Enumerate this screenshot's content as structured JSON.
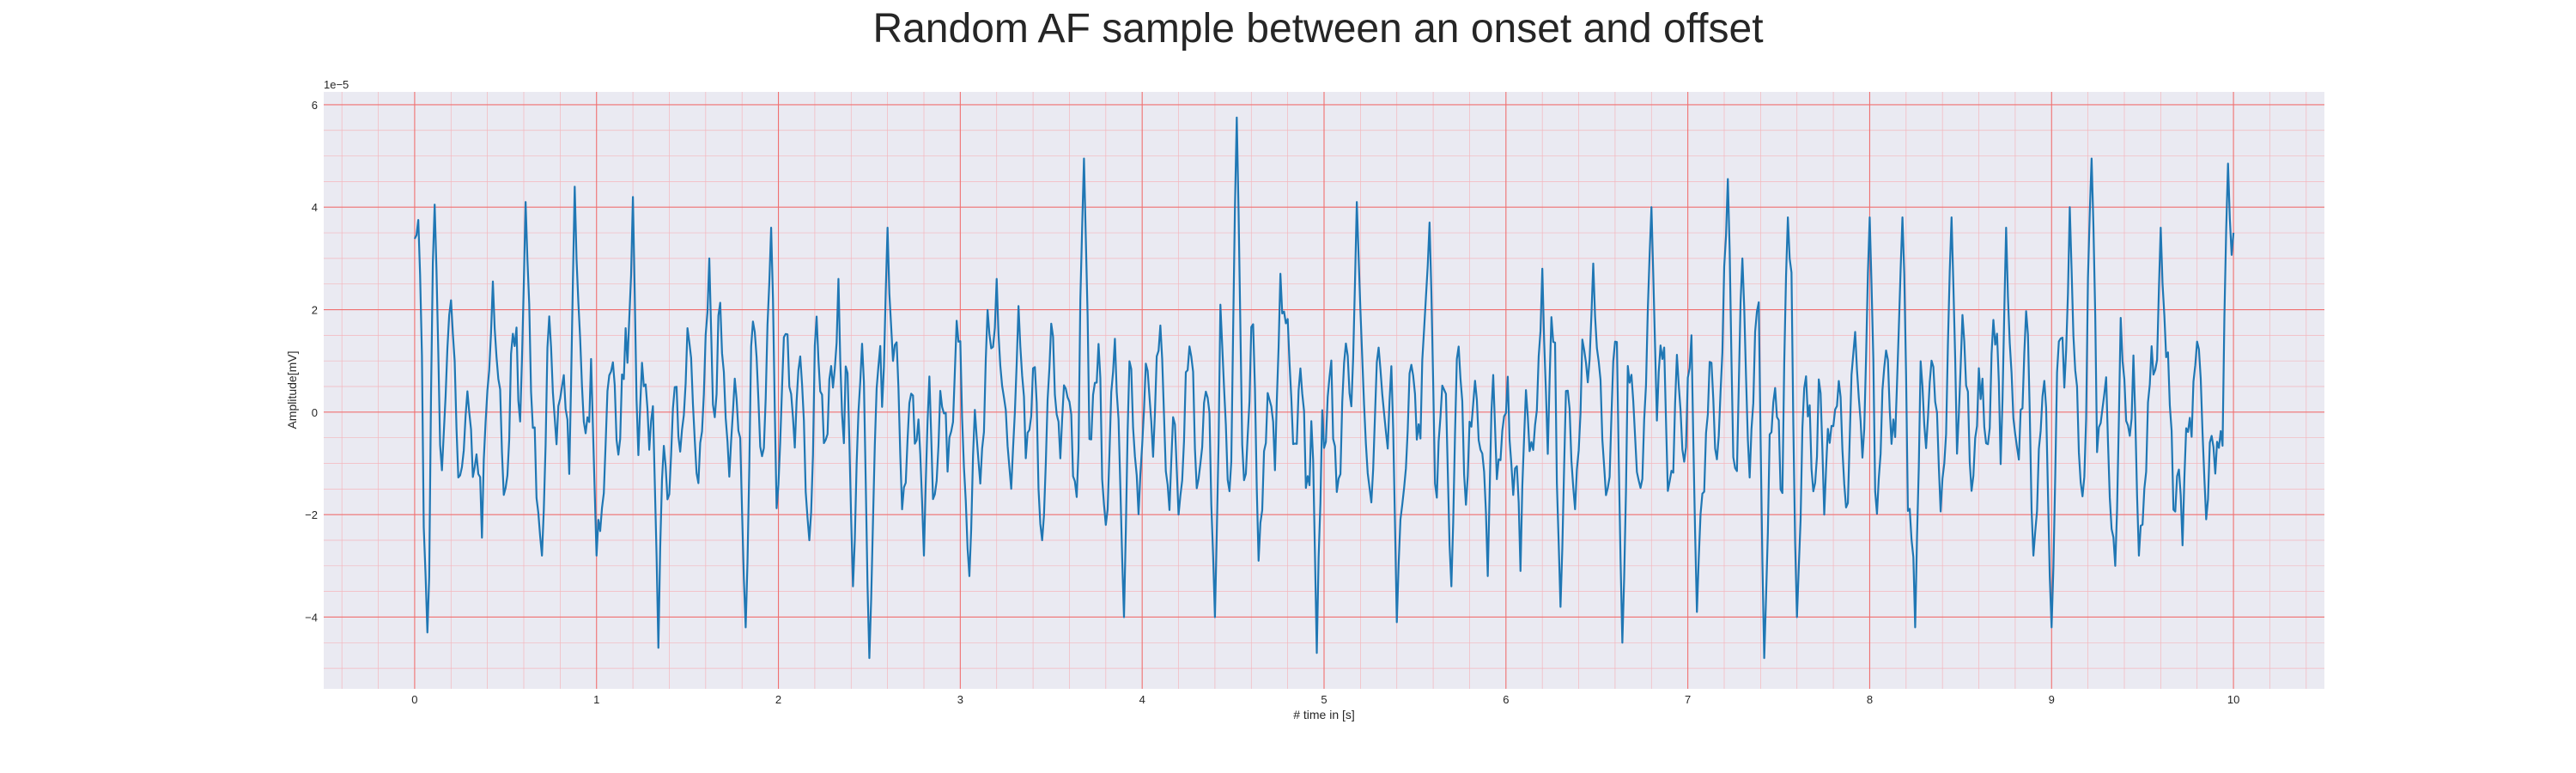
{
  "chart_data": {
    "type": "line",
    "title": "Random AF sample between an onset and offset",
    "xlabel": "# time in [s]",
    "ylabel": "Amplitude[mV]",
    "y_offset_text": "1e−5",
    "xlim": [
      -0.5,
      10.5
    ],
    "ylim": [
      -5.4,
      6.25
    ],
    "x_ticks": [
      0,
      1,
      2,
      3,
      4,
      5,
      6,
      7,
      8,
      9,
      10
    ],
    "y_ticks": [
      -4,
      -2,
      0,
      2,
      4,
      6
    ],
    "y_unit_scale": "1e-5",
    "grid": "on",
    "series": [
      {
        "color": "#1f77b4",
        "x_start": 0.0,
        "x_end": 10.0,
        "num_points": 1001,
        "peak_anchors": [
          {
            "x": 0.0,
            "y": 3.2
          },
          {
            "x": 0.02,
            "y": 3.75
          },
          {
            "x": 0.07,
            "y": -4.3
          },
          {
            "x": 0.11,
            "y": 4.05
          },
          {
            "x": 0.37,
            "y": -2.45
          },
          {
            "x": 0.43,
            "y": 2.55
          },
          {
            "x": 0.61,
            "y": 4.1
          },
          {
            "x": 0.7,
            "y": -2.8
          },
          {
            "x": 0.88,
            "y": 4.4
          },
          {
            "x": 1.0,
            "y": -2.8
          },
          {
            "x": 1.2,
            "y": 4.2
          },
          {
            "x": 1.34,
            "y": -4.6
          },
          {
            "x": 1.62,
            "y": 3.0
          },
          {
            "x": 1.82,
            "y": -4.2
          },
          {
            "x": 1.96,
            "y": 3.6
          },
          {
            "x": 2.17,
            "y": -2.5
          },
          {
            "x": 2.33,
            "y": 2.6
          },
          {
            "x": 2.41,
            "y": -3.4
          },
          {
            "x": 2.5,
            "y": -4.8
          },
          {
            "x": 2.6,
            "y": 3.6
          },
          {
            "x": 2.8,
            "y": -2.8
          },
          {
            "x": 3.05,
            "y": -3.2
          },
          {
            "x": 3.2,
            "y": 2.6
          },
          {
            "x": 3.45,
            "y": -2.5
          },
          {
            "x": 3.68,
            "y": 4.95
          },
          {
            "x": 3.8,
            "y": -2.2
          },
          {
            "x": 3.9,
            "y": -4.0
          },
          {
            "x": 4.2,
            "y": -2.0
          },
          {
            "x": 4.4,
            "y": -4.0
          },
          {
            "x": 4.52,
            "y": 5.75
          },
          {
            "x": 4.64,
            "y": -2.9
          },
          {
            "x": 4.76,
            "y": 2.7
          },
          {
            "x": 4.96,
            "y": -4.7
          },
          {
            "x": 5.18,
            "y": 4.1
          },
          {
            "x": 5.4,
            "y": -4.1
          },
          {
            "x": 5.58,
            "y": 3.7
          },
          {
            "x": 5.7,
            "y": -3.4
          },
          {
            "x": 5.9,
            "y": -3.2
          },
          {
            "x": 6.08,
            "y": -3.1
          },
          {
            "x": 6.2,
            "y": 2.8
          },
          {
            "x": 6.3,
            "y": -3.8
          },
          {
            "x": 6.48,
            "y": 2.9
          },
          {
            "x": 6.64,
            "y": -4.5
          },
          {
            "x": 6.8,
            "y": 4.0
          },
          {
            "x": 7.05,
            "y": -3.9
          },
          {
            "x": 7.22,
            "y": 4.55
          },
          {
            "x": 7.3,
            "y": 3.0
          },
          {
            "x": 7.42,
            "y": -4.8
          },
          {
            "x": 7.55,
            "y": 3.8
          },
          {
            "x": 7.6,
            "y": -4.0
          },
          {
            "x": 7.75,
            "y": -2.0
          },
          {
            "x": 8.0,
            "y": 3.8
          },
          {
            "x": 8.18,
            "y": 3.8
          },
          {
            "x": 8.25,
            "y": -4.2
          },
          {
            "x": 8.45,
            "y": 3.8
          },
          {
            "x": 8.75,
            "y": 3.6
          },
          {
            "x": 8.9,
            "y": -2.8
          },
          {
            "x": 9.0,
            "y": -4.2
          },
          {
            "x": 9.1,
            "y": 4.0
          },
          {
            "x": 9.22,
            "y": 4.95
          },
          {
            "x": 9.35,
            "y": -3.0
          },
          {
            "x": 9.48,
            "y": -2.8
          },
          {
            "x": 9.6,
            "y": 3.6
          },
          {
            "x": 9.72,
            "y": -2.6
          },
          {
            "x": 9.9,
            "y": -1.2
          },
          {
            "x": 9.97,
            "y": 4.85
          },
          {
            "x": 10.0,
            "y": 3.5
          }
        ]
      }
    ]
  }
}
